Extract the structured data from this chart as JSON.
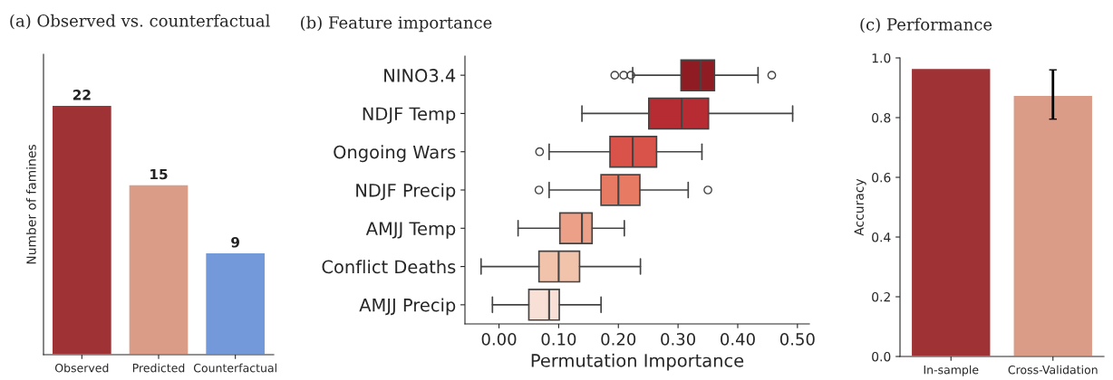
{
  "chart_data": [
    {
      "type": "bar",
      "title": "(a) Observed vs. counterfactual",
      "ylabel": "Number of famines",
      "categories": [
        "Observed",
        "Predicted",
        "Counterfactual"
      ],
      "values": [
        22,
        15,
        9
      ],
      "colors": [
        "#9e3234",
        "#da9b87",
        "#7399da"
      ],
      "data_labels": true,
      "ylim": [
        0,
        26.5
      ],
      "tick_labels": "x"
    },
    {
      "type": "box",
      "orientation": "horizontal",
      "title": "(b) Feature importance",
      "xlabel": "Permutation Importance",
      "categories": [
        "NINO3.4",
        "NDJF Temp",
        "Ongoing Wars",
        "NDJF Precip",
        "AMJJ Temp",
        "Conflict Deaths",
        "AMJJ Precip"
      ],
      "boxes": [
        {
          "low": 0.224,
          "q1": 0.305,
          "median": 0.338,
          "q3": 0.361,
          "high": 0.434,
          "outliers": [
            0.194,
            0.209,
            0.221,
            0.457
          ]
        },
        {
          "low": 0.139,
          "q1": 0.251,
          "median": 0.306,
          "q3": 0.351,
          "high": 0.492
        },
        {
          "low": 0.084,
          "q1": 0.186,
          "median": 0.224,
          "q3": 0.264,
          "high": 0.34,
          "outliers": [
            0.068
          ]
        },
        {
          "low": 0.084,
          "q1": 0.171,
          "median": 0.2,
          "q3": 0.236,
          "high": 0.317,
          "outliers": [
            0.067,
            0.35
          ]
        },
        {
          "low": 0.032,
          "q1": 0.102,
          "median": 0.139,
          "q3": 0.156,
          "high": 0.21
        },
        {
          "low": -0.03,
          "q1": 0.067,
          "median": 0.1,
          "q3": 0.135,
          "high": 0.237
        },
        {
          "low": -0.011,
          "q1": 0.05,
          "median": 0.084,
          "q3": 0.101,
          "high": 0.171
        }
      ],
      "colors": [
        "#8e1c22",
        "#b72c32",
        "#d9534a",
        "#e67a62",
        "#eba087",
        "#f2c3ab",
        "#f8e0d6"
      ],
      "xlim": [
        -0.057,
        0.52
      ],
      "xticks": [
        {
          "value": 0,
          "label": "0.00"
        },
        {
          "value": 0.1,
          "label": "0.10"
        },
        {
          "value": 0.2,
          "label": "0.20"
        },
        {
          "value": 0.3,
          "label": "0.30"
        },
        {
          "value": 0.4,
          "label": "0.40"
        },
        {
          "value": 0.5,
          "label": "0.50"
        }
      ]
    },
    {
      "type": "bar",
      "title": "(c) Performance",
      "ylabel": "Accuracy",
      "categories": [
        "In-sample",
        "Cross-Validation"
      ],
      "values": [
        0.965,
        0.875
      ],
      "colors": [
        "#9e3234",
        "#da9b87"
      ],
      "errors": [
        null,
        [
          0.795,
          0.96
        ]
      ],
      "ylim": [
        0,
        1
      ],
      "yticks": [
        {
          "value": 0,
          "label": "0.0"
        },
        0.2,
        0.4,
        0.6,
        0.8,
        {
          "value": 1,
          "label": "1.0"
        }
      ]
    }
  ]
}
